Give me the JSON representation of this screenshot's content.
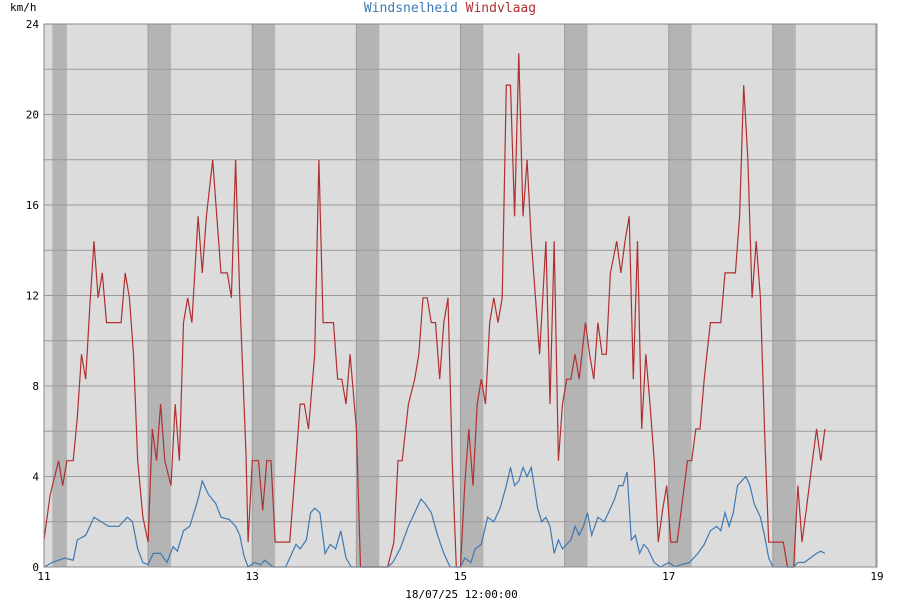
{
  "chart_data": {
    "type": "line",
    "title_parts": [
      {
        "text": "Windsnelheid",
        "color": "#3d7ab3"
      },
      {
        "text": "Windvlaag",
        "color": "#b03030"
      }
    ],
    "ylabel": "km/h",
    "xlabel": "18/07/25 12:00:00",
    "xlim": [
      11,
      19
    ],
    "ylim": [
      0,
      24
    ],
    "x_ticks": [
      "11",
      "13",
      "15",
      "17",
      "19"
    ],
    "y_ticks": [
      "0",
      "4",
      "8",
      "12",
      "16",
      "20",
      "24"
    ],
    "grid": true,
    "night_bands": [
      [
        11.08,
        11.22
      ],
      [
        12.0,
        12.22
      ],
      [
        13.0,
        13.22
      ],
      [
        14.0,
        14.22
      ],
      [
        15.0,
        15.22
      ],
      [
        16.0,
        16.22
      ],
      [
        17.0,
        17.22
      ],
      [
        18.0,
        18.22
      ],
      [
        18.98,
        19.0
      ]
    ],
    "series": [
      {
        "name": "Windsnelheid",
        "color": "#3d7ab3",
        "points": [
          [
            11.0,
            0
          ],
          [
            11.08,
            0.2
          ],
          [
            11.2,
            0.4
          ],
          [
            11.28,
            0.3
          ],
          [
            11.32,
            1.2
          ],
          [
            11.4,
            1.4
          ],
          [
            11.48,
            2.2
          ],
          [
            11.55,
            2.0
          ],
          [
            11.62,
            1.8
          ],
          [
            11.72,
            1.8
          ],
          [
            11.8,
            2.2
          ],
          [
            11.85,
            2.0
          ],
          [
            11.9,
            0.8
          ],
          [
            11.95,
            0.2
          ],
          [
            12.0,
            0.1
          ],
          [
            12.05,
            0.6
          ],
          [
            12.12,
            0.6
          ],
          [
            12.18,
            0.2
          ],
          [
            12.24,
            0.9
          ],
          [
            12.28,
            0.7
          ],
          [
            12.34,
            1.6
          ],
          [
            12.4,
            1.8
          ],
          [
            12.48,
            3.0
          ],
          [
            12.52,
            3.8
          ],
          [
            12.58,
            3.2
          ],
          [
            12.65,
            2.8
          ],
          [
            12.7,
            2.2
          ],
          [
            12.78,
            2.1
          ],
          [
            12.84,
            1.8
          ],
          [
            12.88,
            1.4
          ],
          [
            12.92,
            0.5
          ],
          [
            12.96,
            0.0
          ],
          [
            13.02,
            0.2
          ],
          [
            13.08,
            0.1
          ],
          [
            13.12,
            0.3
          ],
          [
            13.2,
            0.0
          ],
          [
            13.32,
            0.0
          ],
          [
            13.36,
            0.4
          ],
          [
            13.42,
            1.0
          ],
          [
            13.46,
            0.8
          ],
          [
            13.52,
            1.2
          ],
          [
            13.56,
            2.4
          ],
          [
            13.6,
            2.6
          ],
          [
            13.65,
            2.4
          ],
          [
            13.7,
            0.6
          ],
          [
            13.75,
            1.0
          ],
          [
            13.8,
            0.8
          ],
          [
            13.85,
            1.6
          ],
          [
            13.9,
            0.4
          ],
          [
            13.95,
            0.0
          ],
          [
            14.1,
            0.0
          ],
          [
            14.3,
            0.0
          ],
          [
            14.35,
            0.2
          ],
          [
            14.42,
            0.8
          ],
          [
            14.5,
            1.8
          ],
          [
            14.56,
            2.4
          ],
          [
            14.62,
            3.0
          ],
          [
            14.66,
            2.8
          ],
          [
            14.72,
            2.4
          ],
          [
            14.78,
            1.4
          ],
          [
            14.84,
            0.6
          ],
          [
            14.9,
            0.0
          ],
          [
            15.0,
            0.0
          ],
          [
            15.04,
            0.4
          ],
          [
            15.1,
            0.2
          ],
          [
            15.14,
            0.8
          ],
          [
            15.2,
            1.0
          ],
          [
            15.26,
            2.2
          ],
          [
            15.32,
            2.0
          ],
          [
            15.38,
            2.6
          ],
          [
            15.44,
            3.6
          ],
          [
            15.48,
            4.4
          ],
          [
            15.52,
            3.6
          ],
          [
            15.56,
            3.8
          ],
          [
            15.6,
            4.4
          ],
          [
            15.64,
            4.0
          ],
          [
            15.68,
            4.4
          ],
          [
            15.74,
            2.6
          ],
          [
            15.78,
            2.0
          ],
          [
            15.82,
            2.2
          ],
          [
            15.86,
            1.8
          ],
          [
            15.9,
            0.6
          ],
          [
            15.94,
            1.2
          ],
          [
            15.98,
            0.8
          ],
          [
            16.02,
            1.0
          ],
          [
            16.06,
            1.2
          ],
          [
            16.1,
            1.8
          ],
          [
            16.14,
            1.4
          ],
          [
            16.18,
            1.8
          ],
          [
            16.22,
            2.4
          ],
          [
            16.26,
            1.4
          ],
          [
            16.32,
            2.2
          ],
          [
            16.38,
            2.0
          ],
          [
            16.42,
            2.4
          ],
          [
            16.48,
            3.0
          ],
          [
            16.52,
            3.6
          ],
          [
            16.56,
            3.6
          ],
          [
            16.6,
            4.2
          ],
          [
            16.64,
            1.2
          ],
          [
            16.68,
            1.4
          ],
          [
            16.72,
            0.6
          ],
          [
            16.76,
            1.0
          ],
          [
            16.8,
            0.8
          ],
          [
            16.86,
            0.2
          ],
          [
            16.92,
            0.0
          ],
          [
            17.0,
            0.2
          ],
          [
            17.06,
            0.0
          ],
          [
            17.12,
            0.1
          ],
          [
            17.2,
            0.2
          ],
          [
            17.28,
            0.6
          ],
          [
            17.34,
            1.0
          ],
          [
            17.4,
            1.6
          ],
          [
            17.46,
            1.8
          ],
          [
            17.5,
            1.6
          ],
          [
            17.54,
            2.4
          ],
          [
            17.58,
            1.8
          ],
          [
            17.62,
            2.4
          ],
          [
            17.66,
            3.6
          ],
          [
            17.7,
            3.8
          ],
          [
            17.74,
            4.0
          ],
          [
            17.78,
            3.6
          ],
          [
            17.82,
            2.8
          ],
          [
            17.88,
            2.2
          ],
          [
            17.92,
            1.4
          ],
          [
            17.96,
            0.4
          ],
          [
            18.0,
            0.0
          ],
          [
            18.2,
            0.0
          ],
          [
            18.24,
            0.2
          ],
          [
            18.3,
            0.2
          ],
          [
            18.36,
            0.4
          ],
          [
            18.42,
            0.6
          ],
          [
            18.46,
            0.7
          ],
          [
            18.5,
            0.6
          ]
        ]
      },
      {
        "name": "Windvlaag",
        "color": "#b03030",
        "points": [
          [
            11.0,
            1.2
          ],
          [
            11.06,
            3.2
          ],
          [
            11.14,
            4.7
          ],
          [
            11.18,
            3.6
          ],
          [
            11.22,
            4.7
          ],
          [
            11.28,
            4.7
          ],
          [
            11.32,
            6.6
          ],
          [
            11.36,
            9.4
          ],
          [
            11.4,
            8.3
          ],
          [
            11.44,
            11.5
          ],
          [
            11.48,
            14.4
          ],
          [
            11.52,
            11.9
          ],
          [
            11.56,
            13.0
          ],
          [
            11.6,
            10.8
          ],
          [
            11.66,
            10.8
          ],
          [
            11.74,
            10.8
          ],
          [
            11.78,
            13.0
          ],
          [
            11.82,
            11.9
          ],
          [
            11.86,
            9.4
          ],
          [
            11.9,
            4.7
          ],
          [
            11.95,
            2.2
          ],
          [
            12.0,
            1.1
          ],
          [
            12.04,
            6.1
          ],
          [
            12.08,
            4.7
          ],
          [
            12.12,
            7.2
          ],
          [
            12.16,
            4.7
          ],
          [
            12.22,
            3.6
          ],
          [
            12.26,
            7.2
          ],
          [
            12.3,
            4.7
          ],
          [
            12.34,
            10.8
          ],
          [
            12.38,
            11.9
          ],
          [
            12.42,
            10.8
          ],
          [
            12.48,
            15.5
          ],
          [
            12.52,
            13.0
          ],
          [
            12.56,
            15.5
          ],
          [
            12.62,
            18.0
          ],
          [
            12.66,
            15.5
          ],
          [
            12.7,
            13.0
          ],
          [
            12.76,
            13.0
          ],
          [
            12.8,
            11.9
          ],
          [
            12.84,
            18.0
          ],
          [
            12.88,
            11.9
          ],
          [
            12.94,
            5.0
          ],
          [
            12.96,
            1.1
          ],
          [
            13.0,
            4.7
          ],
          [
            13.06,
            4.7
          ],
          [
            13.1,
            2.5
          ],
          [
            13.14,
            4.7
          ],
          [
            13.18,
            4.7
          ],
          [
            13.22,
            1.1
          ],
          [
            13.3,
            1.1
          ],
          [
            13.36,
            1.1
          ],
          [
            13.42,
            4.7
          ],
          [
            13.46,
            7.2
          ],
          [
            13.5,
            7.2
          ],
          [
            13.54,
            6.1
          ],
          [
            13.6,
            9.4
          ],
          [
            13.64,
            18.0
          ],
          [
            13.68,
            10.8
          ],
          [
            13.74,
            10.8
          ],
          [
            13.78,
            10.8
          ],
          [
            13.82,
            8.3
          ],
          [
            13.86,
            8.3
          ],
          [
            13.9,
            7.2
          ],
          [
            13.94,
            9.4
          ],
          [
            14.0,
            6.1
          ],
          [
            14.04,
            0.0
          ],
          [
            14.3,
            0.0
          ],
          [
            14.36,
            1.1
          ],
          [
            14.4,
            4.7
          ],
          [
            14.44,
            4.7
          ],
          [
            14.5,
            7.2
          ],
          [
            14.56,
            8.3
          ],
          [
            14.6,
            9.4
          ],
          [
            14.64,
            11.9
          ],
          [
            14.68,
            11.9
          ],
          [
            14.72,
            10.8
          ],
          [
            14.76,
            10.8
          ],
          [
            14.8,
            8.3
          ],
          [
            14.84,
            10.8
          ],
          [
            14.88,
            11.9
          ],
          [
            14.92,
            4.7
          ],
          [
            14.96,
            0.0
          ],
          [
            15.0,
            0.0
          ],
          [
            15.04,
            3.6
          ],
          [
            15.08,
            6.1
          ],
          [
            15.12,
            3.6
          ],
          [
            15.16,
            7.2
          ],
          [
            15.2,
            8.3
          ],
          [
            15.24,
            7.2
          ],
          [
            15.28,
            10.8
          ],
          [
            15.32,
            11.9
          ],
          [
            15.36,
            10.8
          ],
          [
            15.4,
            11.9
          ],
          [
            15.44,
            21.3
          ],
          [
            15.48,
            21.3
          ],
          [
            15.52,
            15.5
          ],
          [
            15.56,
            22.7
          ],
          [
            15.6,
            15.5
          ],
          [
            15.64,
            18.0
          ],
          [
            15.68,
            14.4
          ],
          [
            15.72,
            11.9
          ],
          [
            15.76,
            9.4
          ],
          [
            15.82,
            14.4
          ],
          [
            15.86,
            7.2
          ],
          [
            15.9,
            14.4
          ],
          [
            15.94,
            4.7
          ],
          [
            15.98,
            7.2
          ],
          [
            16.02,
            8.3
          ],
          [
            16.06,
            8.3
          ],
          [
            16.1,
            9.4
          ],
          [
            16.14,
            8.3
          ],
          [
            16.2,
            10.8
          ],
          [
            16.24,
            9.4
          ],
          [
            16.28,
            8.3
          ],
          [
            16.32,
            10.8
          ],
          [
            16.36,
            9.4
          ],
          [
            16.4,
            9.4
          ],
          [
            16.44,
            13.0
          ],
          [
            16.5,
            14.4
          ],
          [
            16.54,
            13.0
          ],
          [
            16.58,
            14.4
          ],
          [
            16.62,
            15.5
          ],
          [
            16.66,
            8.3
          ],
          [
            16.7,
            14.4
          ],
          [
            16.74,
            6.1
          ],
          [
            16.78,
            9.4
          ],
          [
            16.82,
            7.2
          ],
          [
            16.86,
            4.7
          ],
          [
            16.9,
            1.1
          ],
          [
            16.94,
            2.5
          ],
          [
            16.98,
            3.6
          ],
          [
            17.02,
            1.1
          ],
          [
            17.08,
            1.1
          ],
          [
            17.12,
            2.5
          ],
          [
            17.18,
            4.7
          ],
          [
            17.22,
            4.7
          ],
          [
            17.26,
            6.1
          ],
          [
            17.3,
            6.1
          ],
          [
            17.34,
            8.3
          ],
          [
            17.4,
            10.8
          ],
          [
            17.46,
            10.8
          ],
          [
            17.5,
            10.8
          ],
          [
            17.54,
            13.0
          ],
          [
            17.6,
            13.0
          ],
          [
            17.64,
            13.0
          ],
          [
            17.68,
            15.5
          ],
          [
            17.72,
            21.3
          ],
          [
            17.76,
            18.0
          ],
          [
            17.8,
            11.9
          ],
          [
            17.84,
            14.4
          ],
          [
            17.88,
            11.9
          ],
          [
            17.92,
            6.1
          ],
          [
            17.96,
            1.1
          ],
          [
            18.0,
            1.1
          ],
          [
            18.1,
            1.1
          ],
          [
            18.14,
            0.0
          ],
          [
            18.2,
            0.0
          ],
          [
            18.24,
            3.6
          ],
          [
            18.28,
            1.1
          ],
          [
            18.32,
            2.5
          ],
          [
            18.38,
            4.7
          ],
          [
            18.42,
            6.1
          ],
          [
            18.46,
            4.7
          ],
          [
            18.5,
            6.1
          ]
        ]
      }
    ]
  }
}
